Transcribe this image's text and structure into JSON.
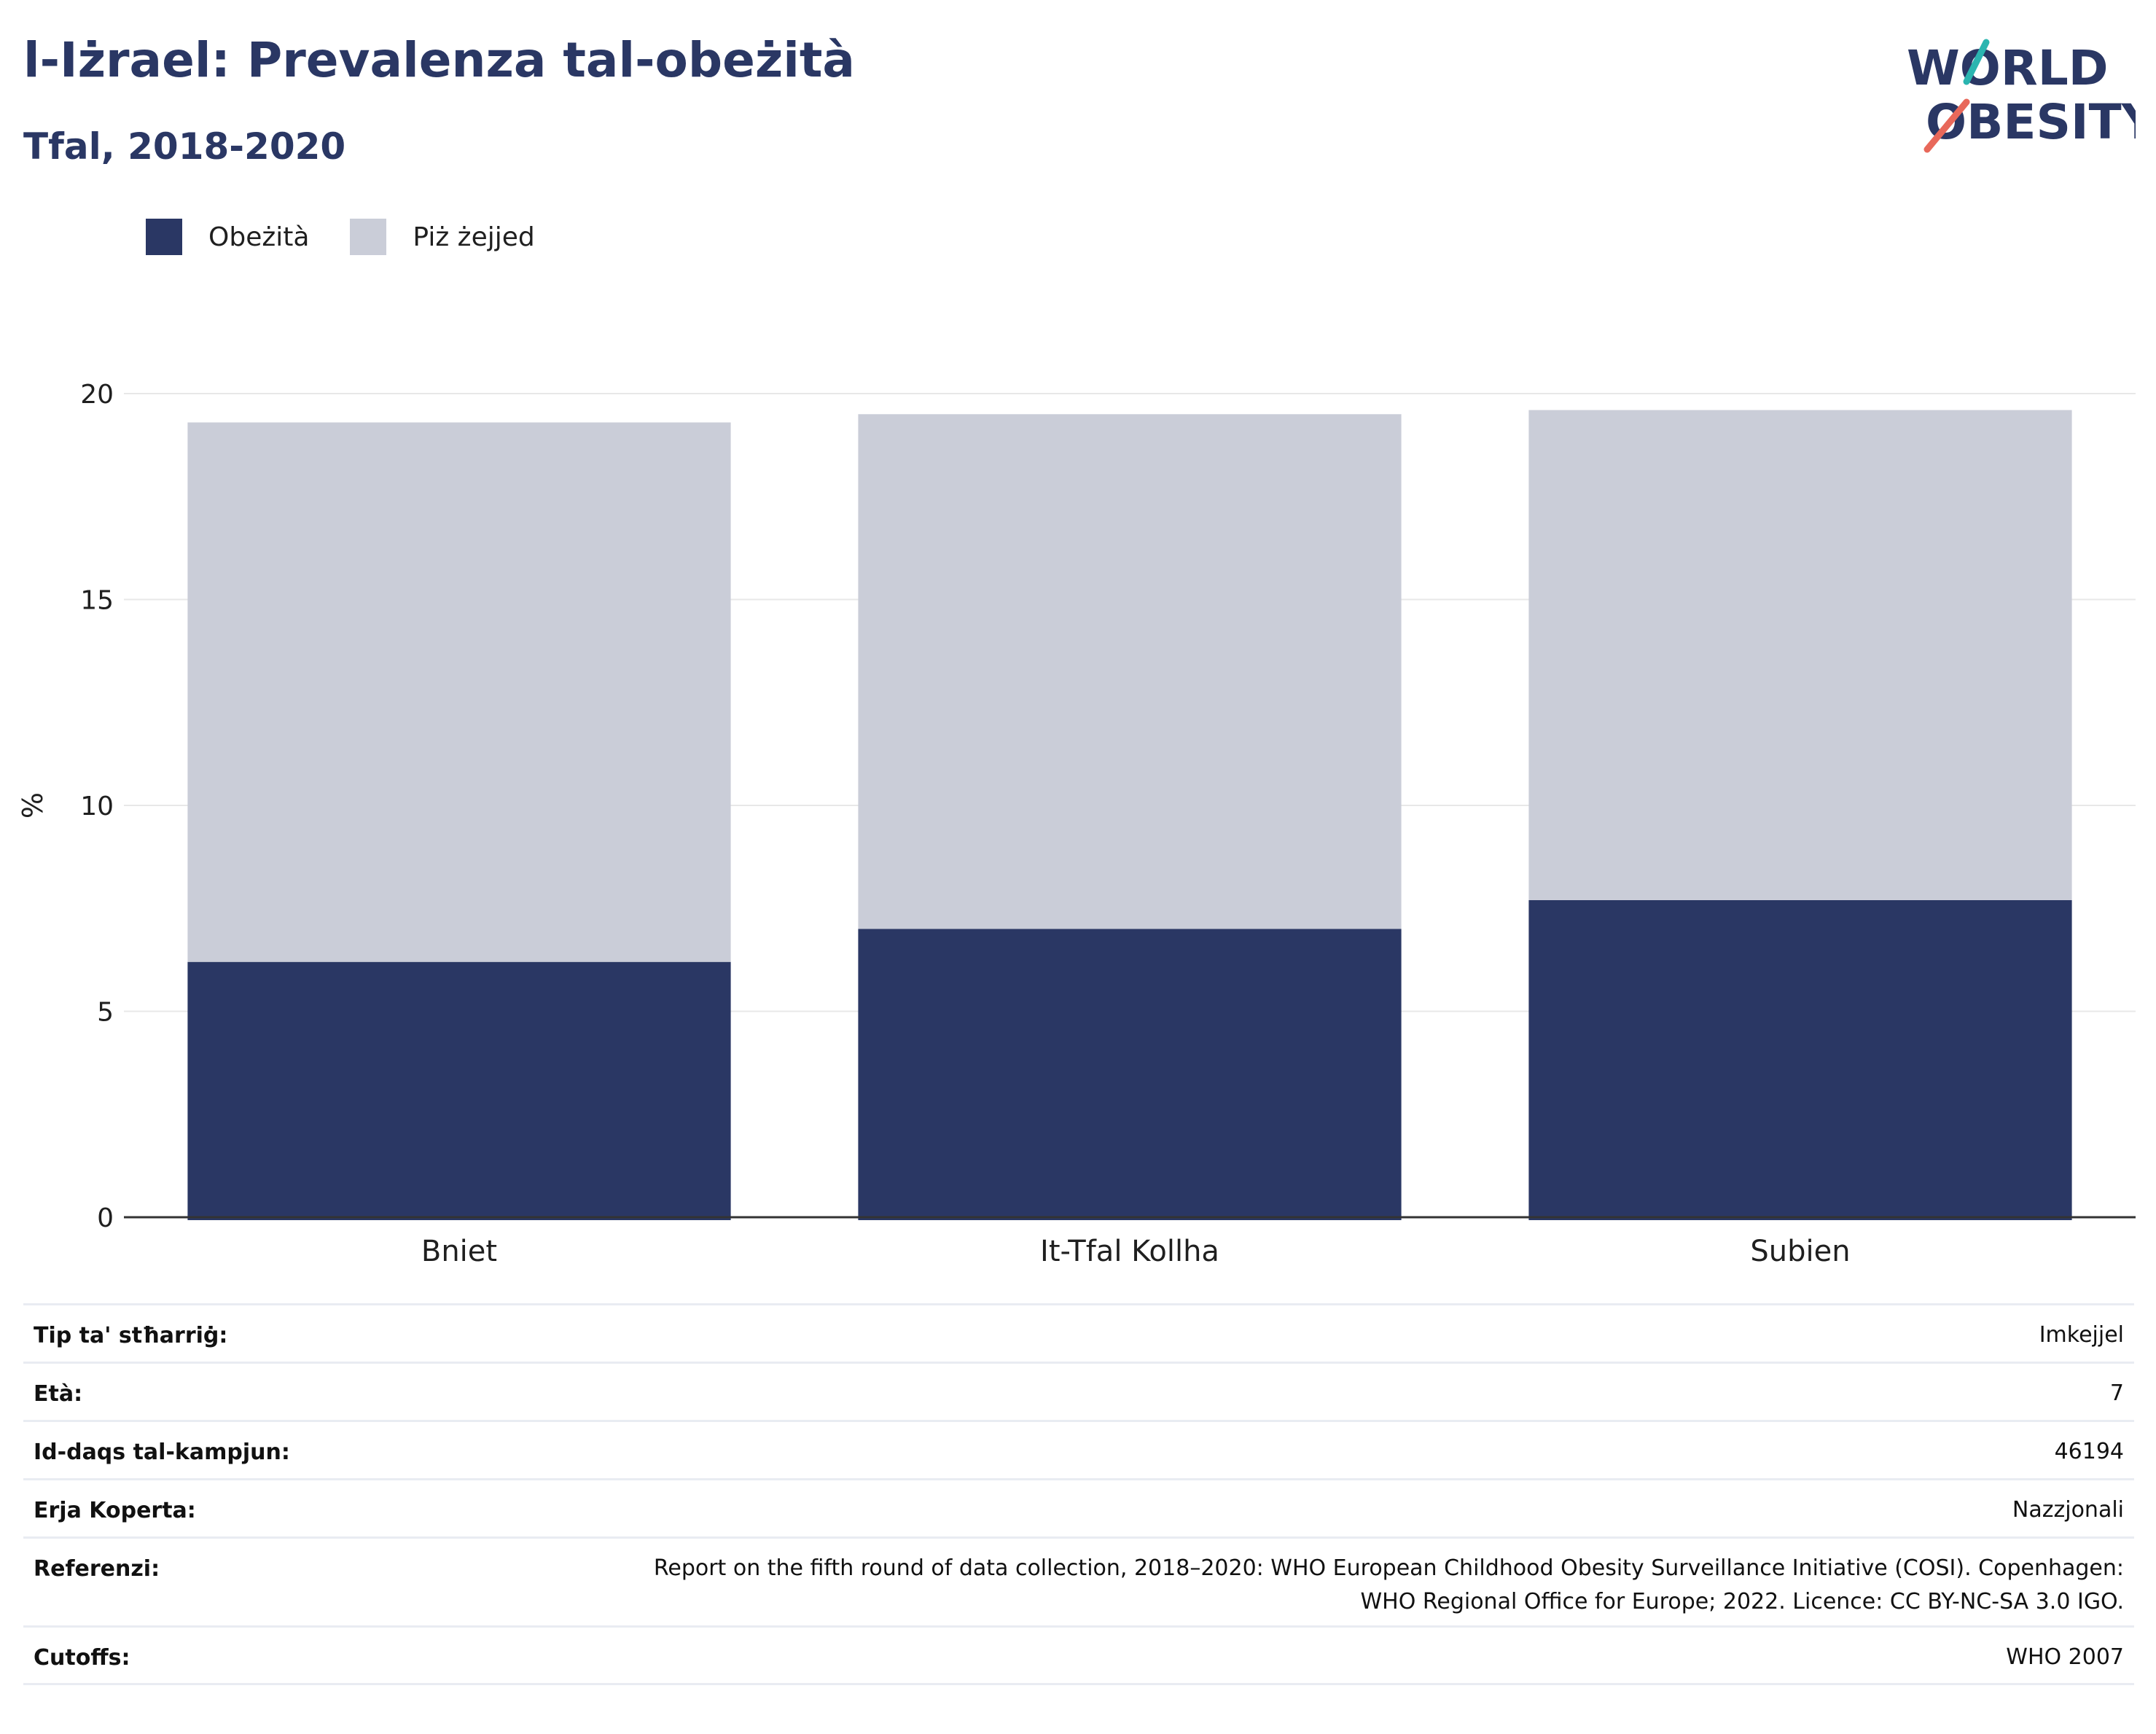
{
  "header": {
    "title": "l-Iżrael: Prevalenza tal-obeżità",
    "subtitle": "Tfal, 2018-2020"
  },
  "logo": {
    "line1": "WORLD",
    "line2": "OBESITY",
    "accent_teal": "#2bb5b0",
    "accent_coral": "#e8685a"
  },
  "colors": {
    "obesity": "#2a3764",
    "overweight": "#cacdd8",
    "text": "#1f1f1f",
    "grid": "#e8e8e8",
    "axis": "#333333"
  },
  "chart_data": {
    "type": "bar",
    "stacked": true,
    "categories": [
      "Bniet",
      "It-Tfal Kollha",
      "Subien"
    ],
    "series": [
      {
        "name": "Obeżità",
        "values": [
          6.2,
          7.0,
          7.7
        ],
        "color": "#2a3764"
      },
      {
        "name": "Piż żejjed",
        "values": [
          13.1,
          12.5,
          11.9
        ],
        "color": "#cacdd8"
      }
    ],
    "ylabel": "%",
    "ylim": [
      0,
      20
    ],
    "yticks": [
      0,
      5,
      10,
      15,
      20
    ],
    "grid": true,
    "legend_position": "top-left"
  },
  "info": [
    {
      "key": "Tip ta' stħarriġ:",
      "value": "Imkejjel"
    },
    {
      "key": "Età:",
      "value": "7"
    },
    {
      "key": "Id-daqs tal-kampjun:",
      "value": "46194"
    },
    {
      "key": "Erja Koperta:",
      "value": "Nazzjonali"
    },
    {
      "key": "Referenzi:",
      "value": "Report on the fifth round of data collection, 2018–2020: WHO European Childhood Obesity Surveillance Initiative (COSI). Copenhagen: WHO Regional Office for Europe; 2022. Licence: CC BY-NC-SA 3.0 IGO."
    },
    {
      "key": "Cutoffs:",
      "value": "WHO 2007"
    }
  ]
}
